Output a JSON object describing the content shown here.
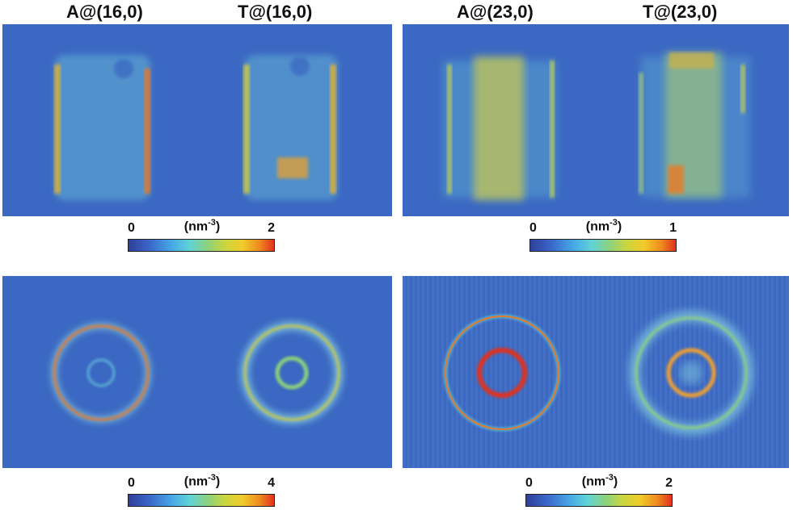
{
  "column_labels": {
    "a16": "A@(16,0)",
    "t16": "T@(16,0)",
    "a23": "A@(23,0)",
    "t23": "T@(23,0)"
  },
  "colors": {
    "background_blue": "#3b68c2",
    "low": "#2f3f9a",
    "mid": "#8fd27a",
    "high": "#e0321c"
  },
  "colorbars": [
    {
      "min": "0",
      "max": "2",
      "unit_base": "(nm",
      "unit_exp": "-3",
      "unit_close": ")"
    },
    {
      "min": "0",
      "max": "1",
      "unit_base": "(nm",
      "unit_exp": "-3",
      "unit_close": ")"
    },
    {
      "min": "0",
      "max": "4",
      "unit_base": "(nm",
      "unit_exp": "-3",
      "unit_close": ")"
    },
    {
      "min": "0",
      "max": "2",
      "unit_base": "(nm",
      "unit_exp": "-3",
      "unit_close": ")"
    }
  ]
}
